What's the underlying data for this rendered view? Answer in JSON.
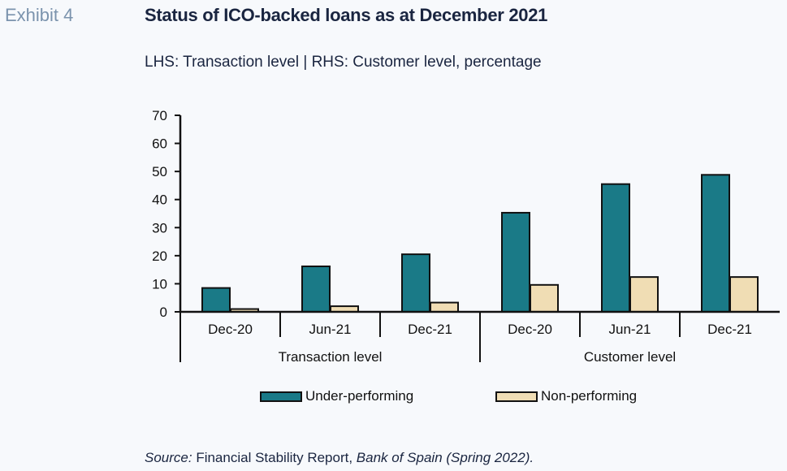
{
  "header": {
    "exhibit": "Exhibit 4",
    "title": "Status of ICO-backed loans as at December 2021",
    "subtitle": "LHS: Transaction level | RHS: Customer level, percentage"
  },
  "source": {
    "label": "Source:",
    "report": " Financial Stability Report, ",
    "publisher": "Bank of Spain (Spring 2022)."
  },
  "colors": {
    "under": "#1a7a87",
    "non": "#f0ddb4"
  },
  "chart_data": {
    "type": "bar",
    "ylim": [
      0,
      70
    ],
    "yticks": [
      0,
      10,
      20,
      30,
      40,
      50,
      60,
      70
    ],
    "categories": [
      "Dec-20",
      "Jun-21",
      "Dec-21",
      "Dec-20",
      "Jun-21",
      "Dec-21"
    ],
    "groups": [
      {
        "label": "Transaction level",
        "categories": [
          "Dec-20",
          "Jun-21",
          "Dec-21"
        ]
      },
      {
        "label": "Customer level",
        "categories": [
          "Dec-20",
          "Jun-21",
          "Dec-21"
        ]
      }
    ],
    "series": [
      {
        "name": "Under-performing",
        "values": [
          8.5,
          16.2,
          20.5,
          35.3,
          45.5,
          48.8
        ]
      },
      {
        "name": "Non-performing",
        "values": [
          1.0,
          2.0,
          3.3,
          9.6,
          12.4,
          12.4
        ]
      }
    ],
    "legend_position": "bottom"
  }
}
